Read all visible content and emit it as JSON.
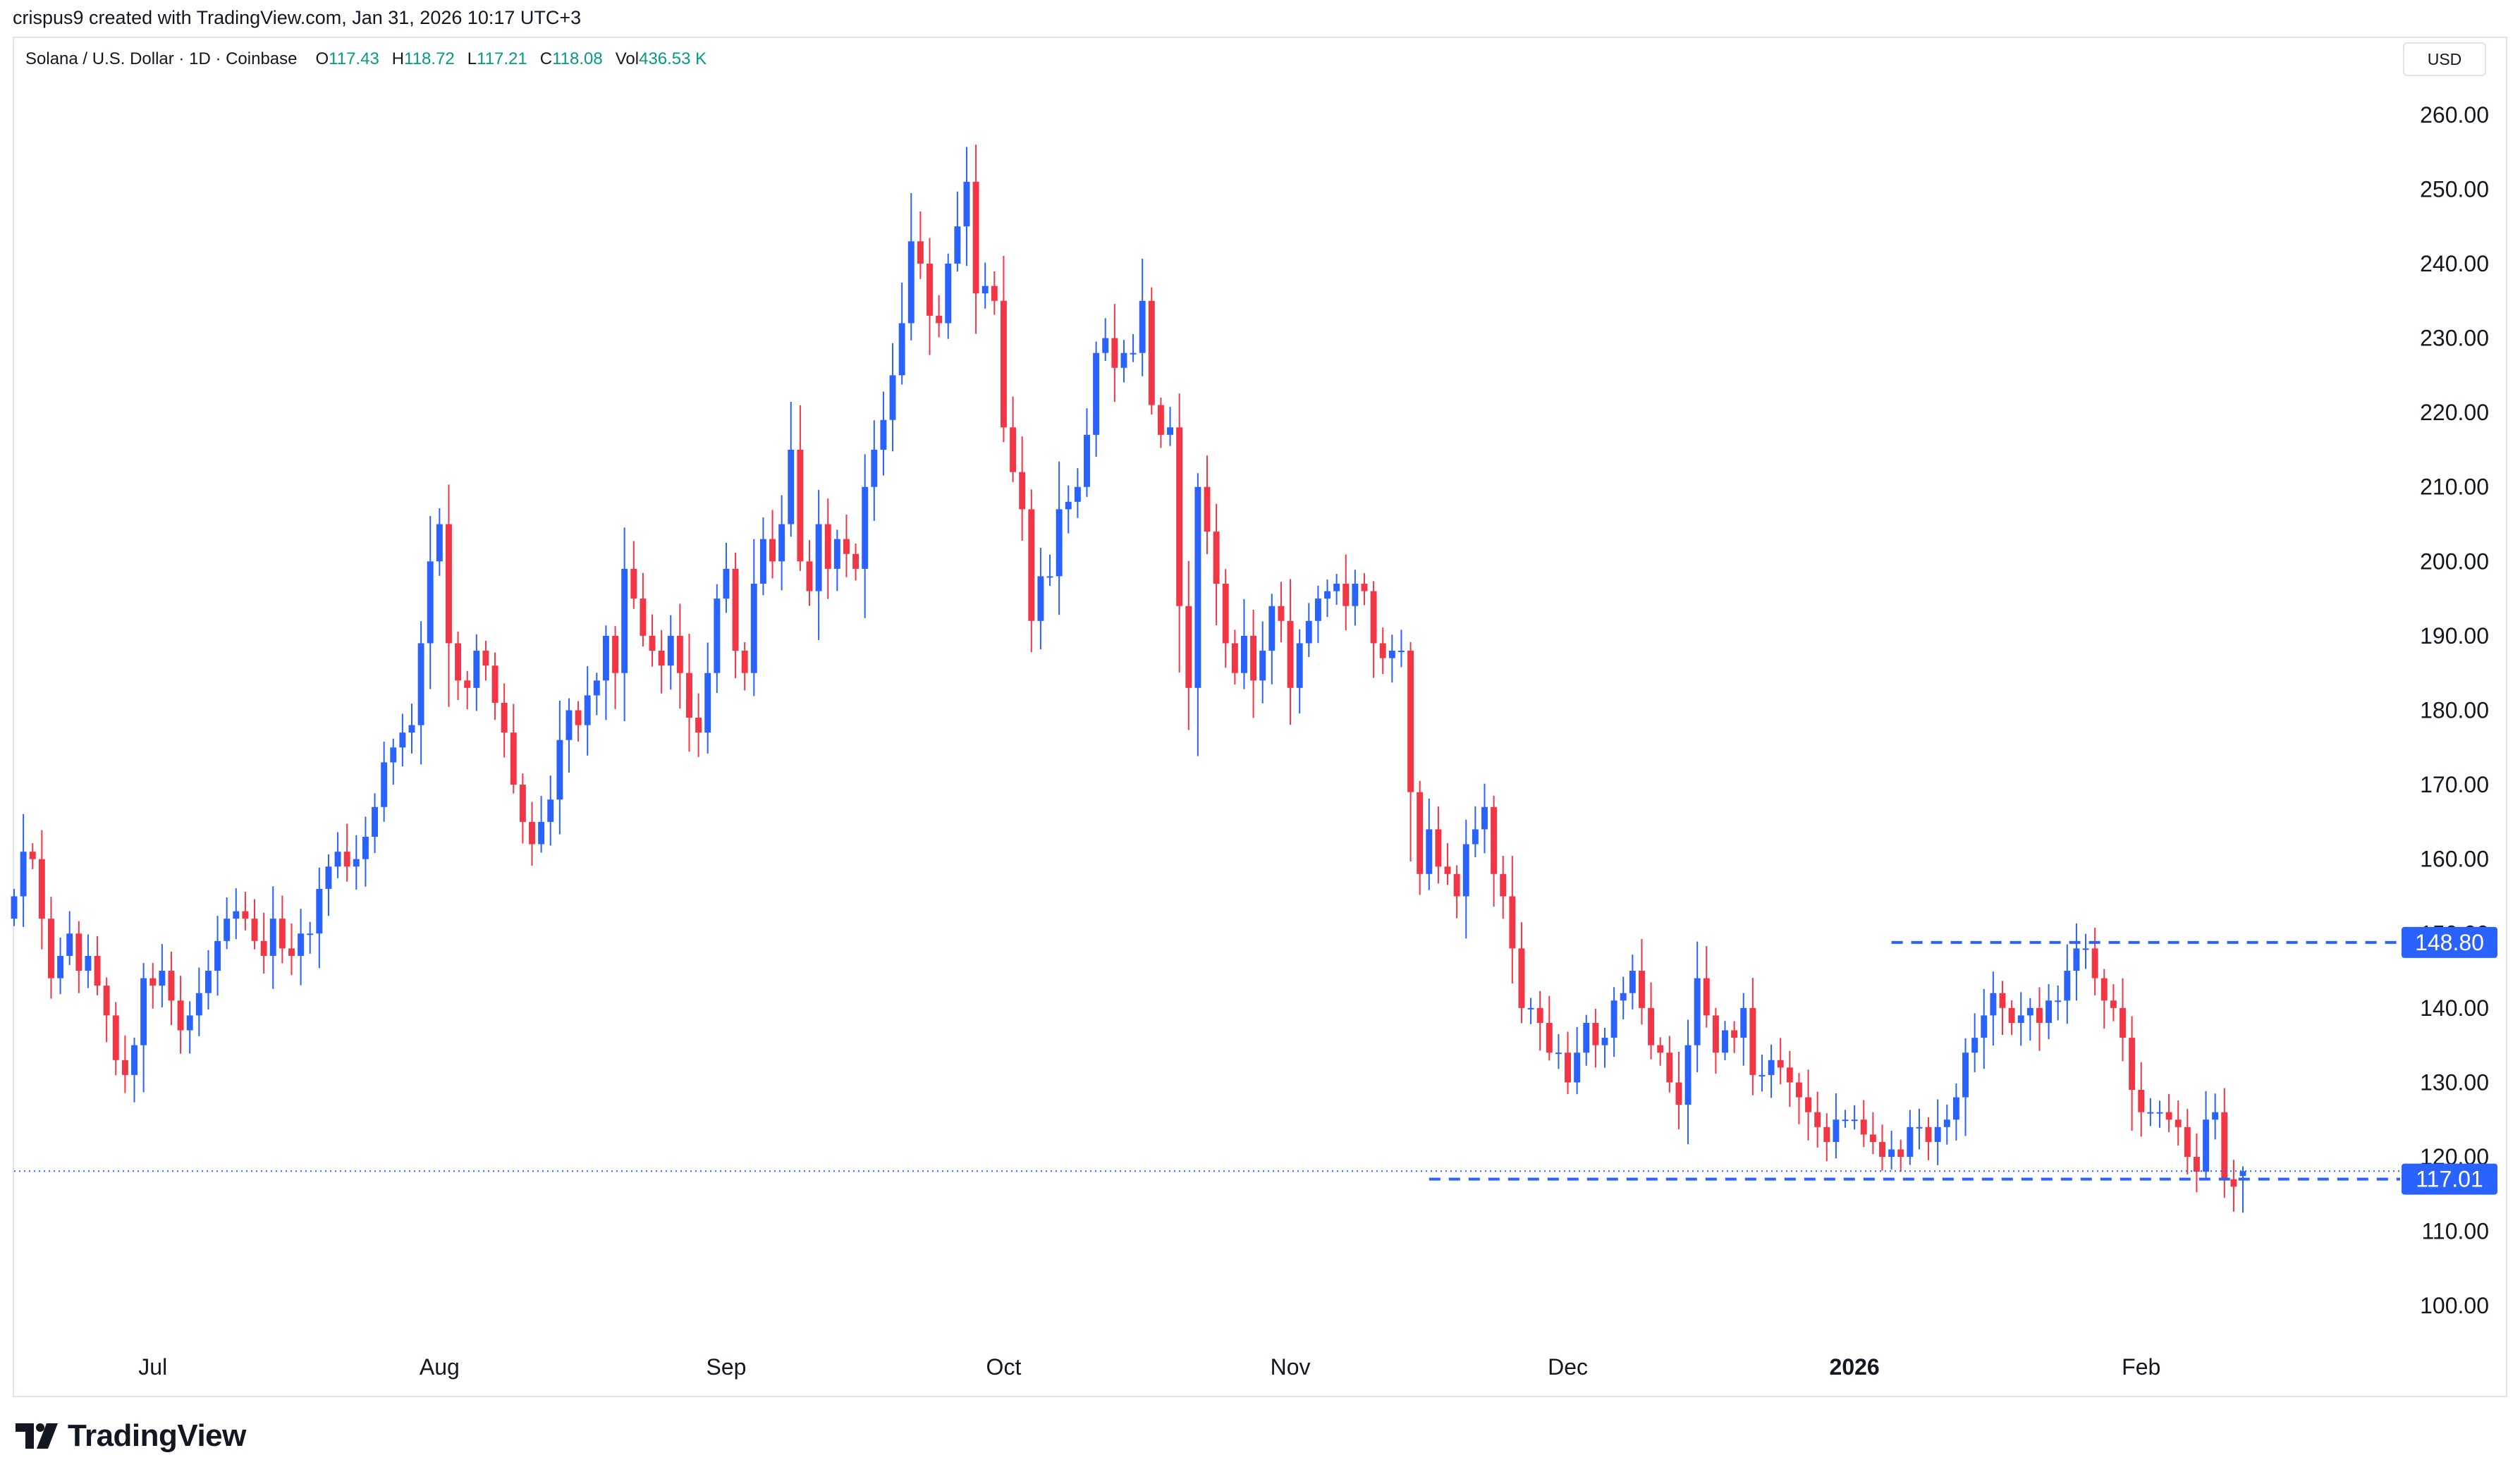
{
  "credit": "crispus9 created with TradingView.com, Jan 31, 2026 10:17 UTC+3",
  "brand": "TradingView",
  "legend": {
    "symbol": "Solana / U.S. Dollar · 1D · Coinbase",
    "o_label": "O",
    "o_value": "117.43",
    "h_label": "H",
    "h_value": "118.72",
    "l_label": "L",
    "l_value": "117.21",
    "c_label": "C",
    "c_value": "118.08",
    "vol_label": "Vol",
    "vol_value": "436.53 K"
  },
  "currency": "USD",
  "colors": {
    "up": "#2962ff",
    "down": "#f23645",
    "level": "#2962ff",
    "legend_value": "#089981"
  },
  "chart_data": {
    "type": "candlestick",
    "title": "Solana / U.S. Dollar · 1D · Coinbase",
    "ylim": [
      95,
      265
    ],
    "y_ticks": [
      "100.00",
      "110.00",
      "120.00",
      "130.00",
      "140.00",
      "150.00",
      "160.00",
      "170.00",
      "180.00",
      "190.00",
      "200.00",
      "210.00",
      "220.00",
      "230.00",
      "240.00",
      "250.00",
      "260.00"
    ],
    "x_ticks": [
      {
        "label": "Jul",
        "date": "2025-07-01"
      },
      {
        "label": "Aug",
        "date": "2025-08-01"
      },
      {
        "label": "Sep",
        "date": "2025-09-01"
      },
      {
        "label": "Oct",
        "date": "2025-10-01"
      },
      {
        "label": "Nov",
        "date": "2025-11-01"
      },
      {
        "label": "Dec",
        "date": "2025-12-01"
      },
      {
        "label": "2026",
        "date": "2026-01-01",
        "bold": true
      },
      {
        "label": "Feb",
        "date": "2026-02-01"
      }
    ],
    "x_range": [
      "2025-06-16",
      "2026-03-01"
    ],
    "first_date": "2025-06-16",
    "closes": [
      155,
      161,
      160,
      152,
      144,
      147,
      150,
      145,
      147,
      143,
      139,
      133,
      131,
      135,
      144,
      143,
      145,
      141,
      137,
      139,
      142,
      145,
      149,
      152,
      153,
      152,
      149,
      147,
      152,
      148,
      147,
      150,
      150,
      156,
      159,
      161,
      159,
      160,
      163,
      167,
      173,
      175,
      177,
      178,
      189,
      200,
      205,
      189,
      184,
      183,
      188,
      186,
      181,
      177,
      170,
      165,
      162,
      165,
      168,
      176,
      180,
      178,
      182,
      184,
      190,
      185,
      199,
      195,
      190,
      188,
      186,
      190,
      185,
      179,
      177,
      185,
      195,
      199,
      188,
      185,
      197,
      203,
      200,
      205,
      215,
      200,
      196,
      205,
      199,
      203,
      201,
      199,
      210,
      215,
      219,
      225,
      232,
      243,
      240,
      233,
      232,
      240,
      245,
      251,
      236,
      237,
      235,
      218,
      212,
      207,
      192,
      198,
      198,
      207,
      208,
      210,
      217,
      228,
      230,
      226,
      228,
      228,
      235,
      221,
      217,
      218,
      194,
      183,
      210,
      204,
      197,
      189,
      185,
      190,
      184,
      188,
      194,
      192,
      183,
      189,
      192,
      195,
      196,
      197,
      194,
      197,
      196,
      189,
      187,
      188,
      188,
      169,
      158,
      164,
      159,
      158,
      155,
      162,
      164,
      167,
      158,
      155,
      148,
      140,
      140,
      138,
      134,
      134,
      130,
      134,
      138,
      135,
      136,
      141,
      142,
      145,
      140,
      135,
      134,
      130,
      127,
      135,
      144,
      139,
      134,
      137,
      136,
      140,
      131,
      131,
      133,
      132,
      130,
      128,
      126,
      124,
      122,
      125,
      125,
      125,
      123,
      122,
      120,
      121,
      120,
      124,
      124,
      122,
      124,
      125,
      128,
      134,
      136,
      139,
      142,
      140,
      138,
      139,
      140,
      138,
      141,
      141,
      145,
      148,
      148,
      144,
      141,
      140,
      136,
      129,
      126,
      126,
      126,
      125,
      124,
      120,
      118,
      125,
      126,
      117,
      116,
      118
    ],
    "horizontal_levels": [
      {
        "value": 148.8,
        "label": "148.80"
      },
      {
        "value": 117.01,
        "label": "117.01"
      }
    ],
    "last_price": 118.08
  }
}
